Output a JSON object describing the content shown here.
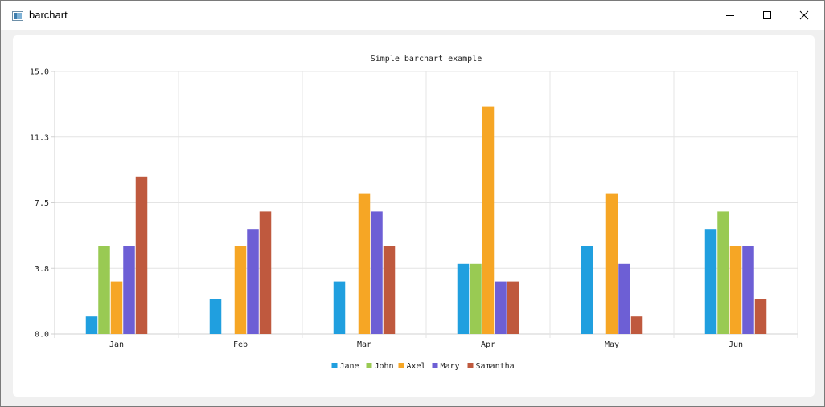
{
  "window": {
    "title": "barchart",
    "icons": {
      "app": "app-window-icon",
      "minimize": "minimize-icon",
      "maximize": "maximize-icon",
      "close": "close-icon"
    }
  },
  "colors": {
    "Jane": "#209fdf",
    "John": "#99ca53",
    "Axel": "#f6a625",
    "Mary": "#6d5fd5",
    "Samantha": "#bf593e",
    "grid": "#e4e4e4",
    "axis": "#d0d0d0"
  },
  "chart_data": {
    "type": "bar",
    "title": "Simple barchart example",
    "xlabel": "",
    "ylabel": "",
    "categories": [
      "Jan",
      "Feb",
      "Mar",
      "Apr",
      "May",
      "Jun"
    ],
    "ylim": [
      0,
      15
    ],
    "yticks": [
      "0.0",
      "3.8",
      "7.5",
      "11.3",
      "15.0"
    ],
    "grid": true,
    "legend_position": "bottom",
    "series": [
      {
        "name": "Jane",
        "values": [
          1,
          2,
          3,
          4,
          5,
          6
        ]
      },
      {
        "name": "John",
        "values": [
          5,
          0,
          0,
          4,
          0,
          7
        ]
      },
      {
        "name": "Axel",
        "values": [
          3,
          5,
          8,
          13,
          8,
          5
        ]
      },
      {
        "name": "Mary",
        "values": [
          5,
          6,
          7,
          3,
          4,
          5
        ]
      },
      {
        "name": "Samantha",
        "values": [
          9,
          7,
          5,
          3,
          1,
          2
        ]
      }
    ]
  }
}
